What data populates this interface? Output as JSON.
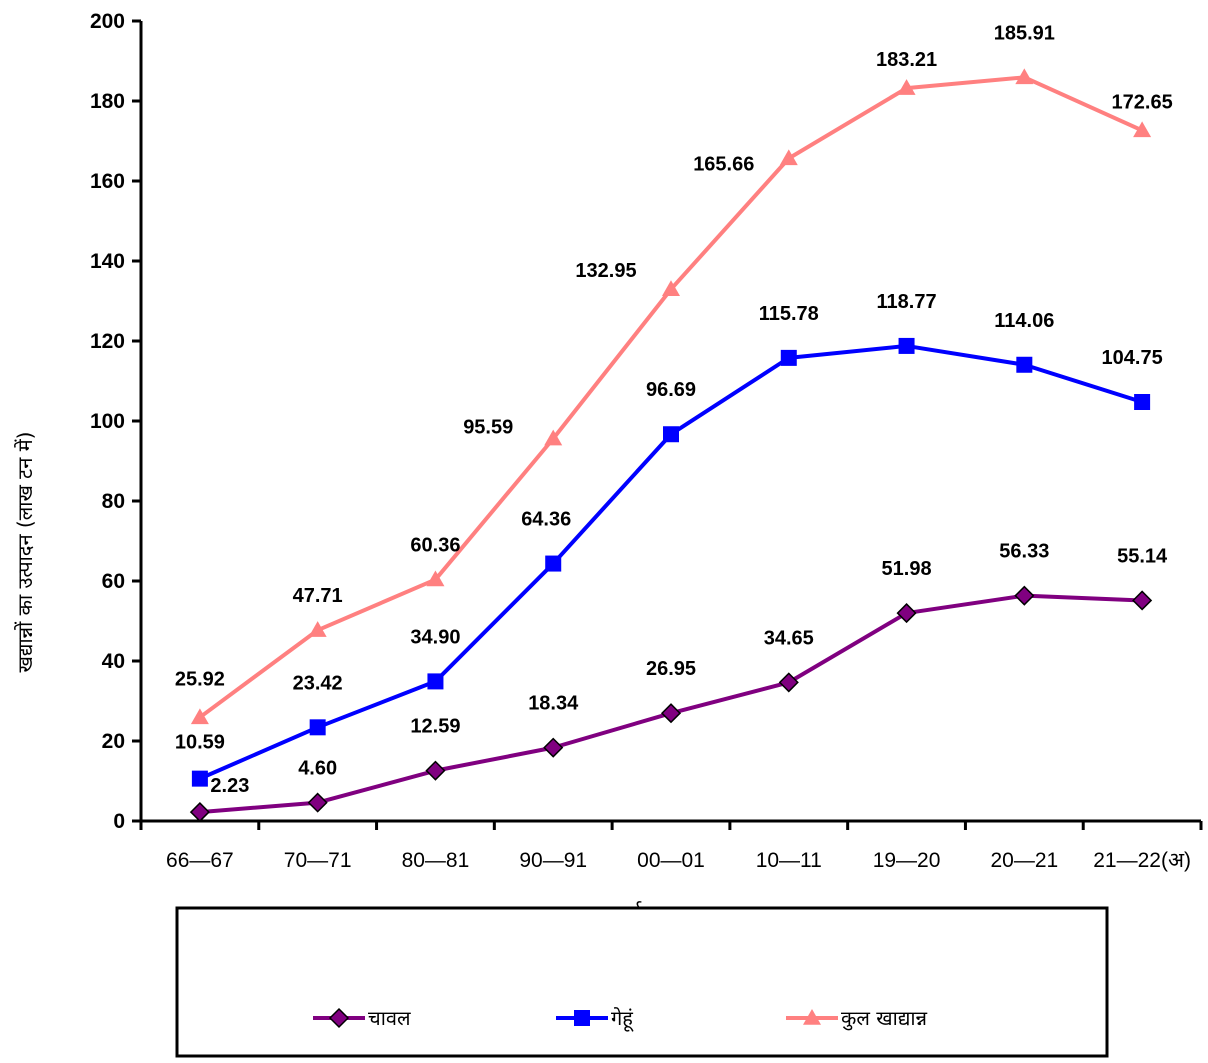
{
  "chart_data": {
    "type": "line",
    "title": "",
    "xlabel": "वर्ष",
    "ylabel": "खद्यान्नों का उत्पादन (लाख टन में)",
    "categories": [
      "66—67",
      "70—71",
      "80—81",
      "90—91",
      "00—01",
      "10—11",
      "19—20",
      "20—21",
      "21—22(अ)"
    ],
    "ylim": [
      0,
      200
    ],
    "yticks": [
      0,
      20,
      40,
      60,
      80,
      100,
      120,
      140,
      160,
      180,
      200
    ],
    "grid": false,
    "legend_position": "bottom",
    "series": [
      {
        "name": "चावल",
        "color": "#800080",
        "marker": "diamond",
        "values": [
          2.23,
          4.6,
          12.59,
          18.34,
          26.95,
          34.65,
          51.98,
          56.33,
          55.14
        ],
        "labels": [
          "2.23",
          "4.60",
          "12.59",
          "18.34",
          "26.95",
          "34.65",
          "51.98",
          "56.33",
          "55.14"
        ]
      },
      {
        "name": "गेहूं",
        "color": "#0000FF",
        "marker": "square",
        "values": [
          10.59,
          23.42,
          34.9,
          64.36,
          96.69,
          115.78,
          118.77,
          114.06,
          104.75
        ],
        "labels": [
          "10.59",
          "23.42",
          "34.90",
          "64.36",
          "96.69",
          "115.78",
          "118.77",
          "114.06",
          "104.75"
        ]
      },
      {
        "name": "कुल खाद्यान्न",
        "color": "#FF8080",
        "marker": "triangle",
        "values": [
          25.92,
          47.71,
          60.36,
          95.59,
          132.95,
          165.66,
          183.21,
          185.91,
          172.65
        ],
        "labels": [
          "25.92",
          "47.71",
          "60.36",
          "95.59",
          "132.95",
          "165.66",
          "183.21",
          "185.91",
          "172.65"
        ]
      }
    ]
  }
}
